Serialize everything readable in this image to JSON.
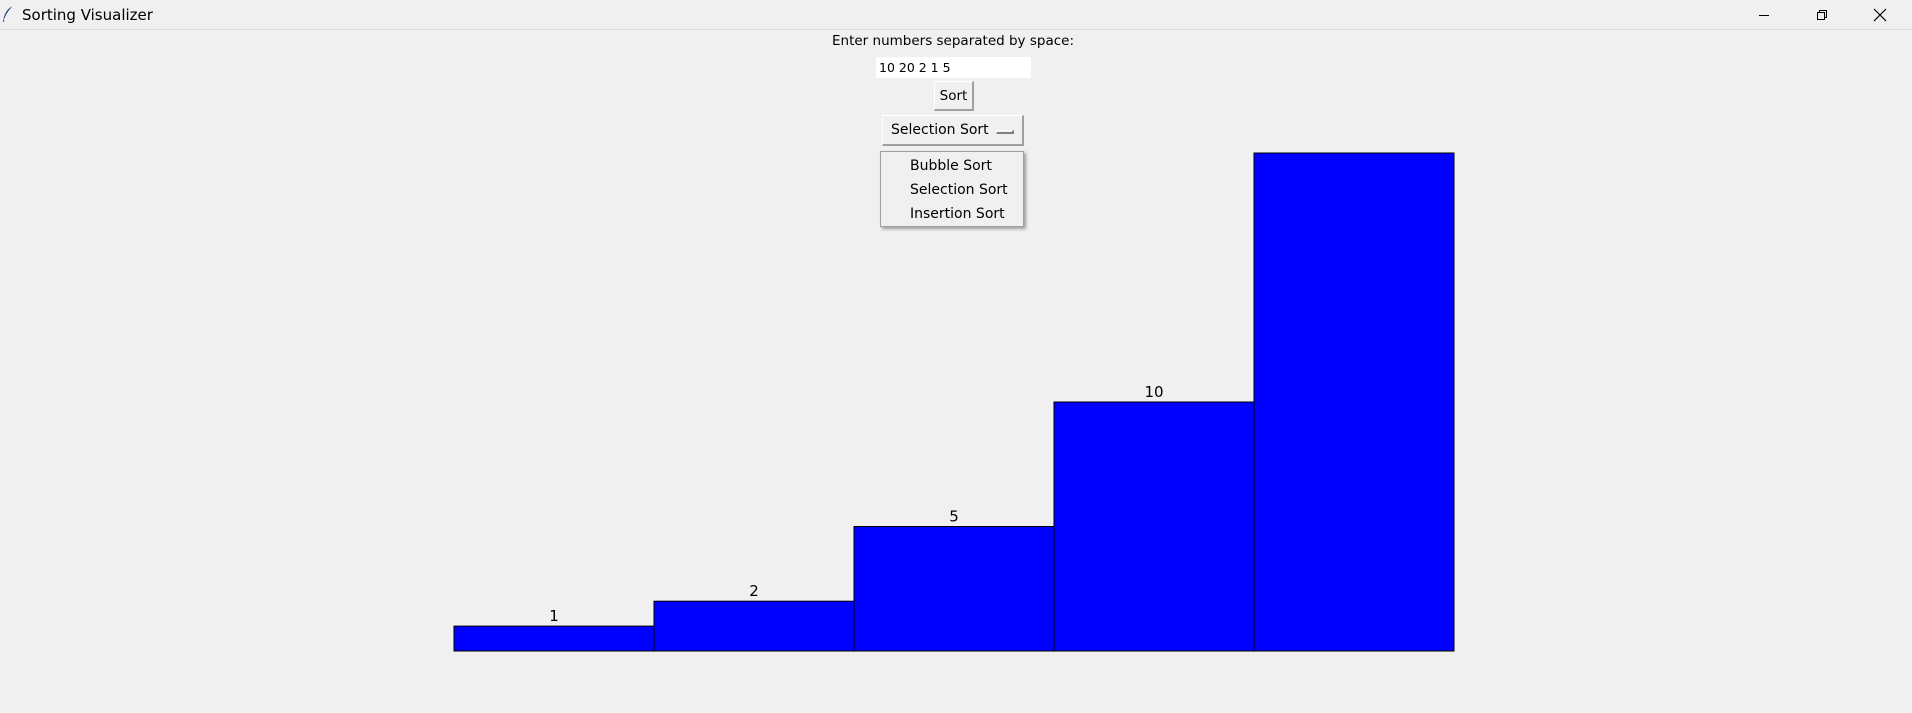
{
  "window": {
    "title": "Sorting Visualizer",
    "app_icon": "feather-icon",
    "controls": {
      "minimize_icon": "minimize-icon",
      "maximize_icon": "restore-icon",
      "close_icon": "close-icon"
    }
  },
  "form": {
    "prompt": "Enter numbers separated by space:",
    "input_value": "10 20 2 1 5",
    "sort_label": "Sort",
    "algorithm_selected": "Selection Sort",
    "algorithm_options": [
      "Bubble Sort",
      "Selection Sort",
      "Insertion Sort"
    ],
    "menu_open": true
  },
  "chart_data": {
    "type": "bar",
    "bar_color": "#0000ff",
    "values": [
      1,
      2,
      5,
      10,
      20
    ],
    "labels": [
      "1",
      "2",
      "5",
      "10",
      ""
    ],
    "note_hidden_label": true
  }
}
